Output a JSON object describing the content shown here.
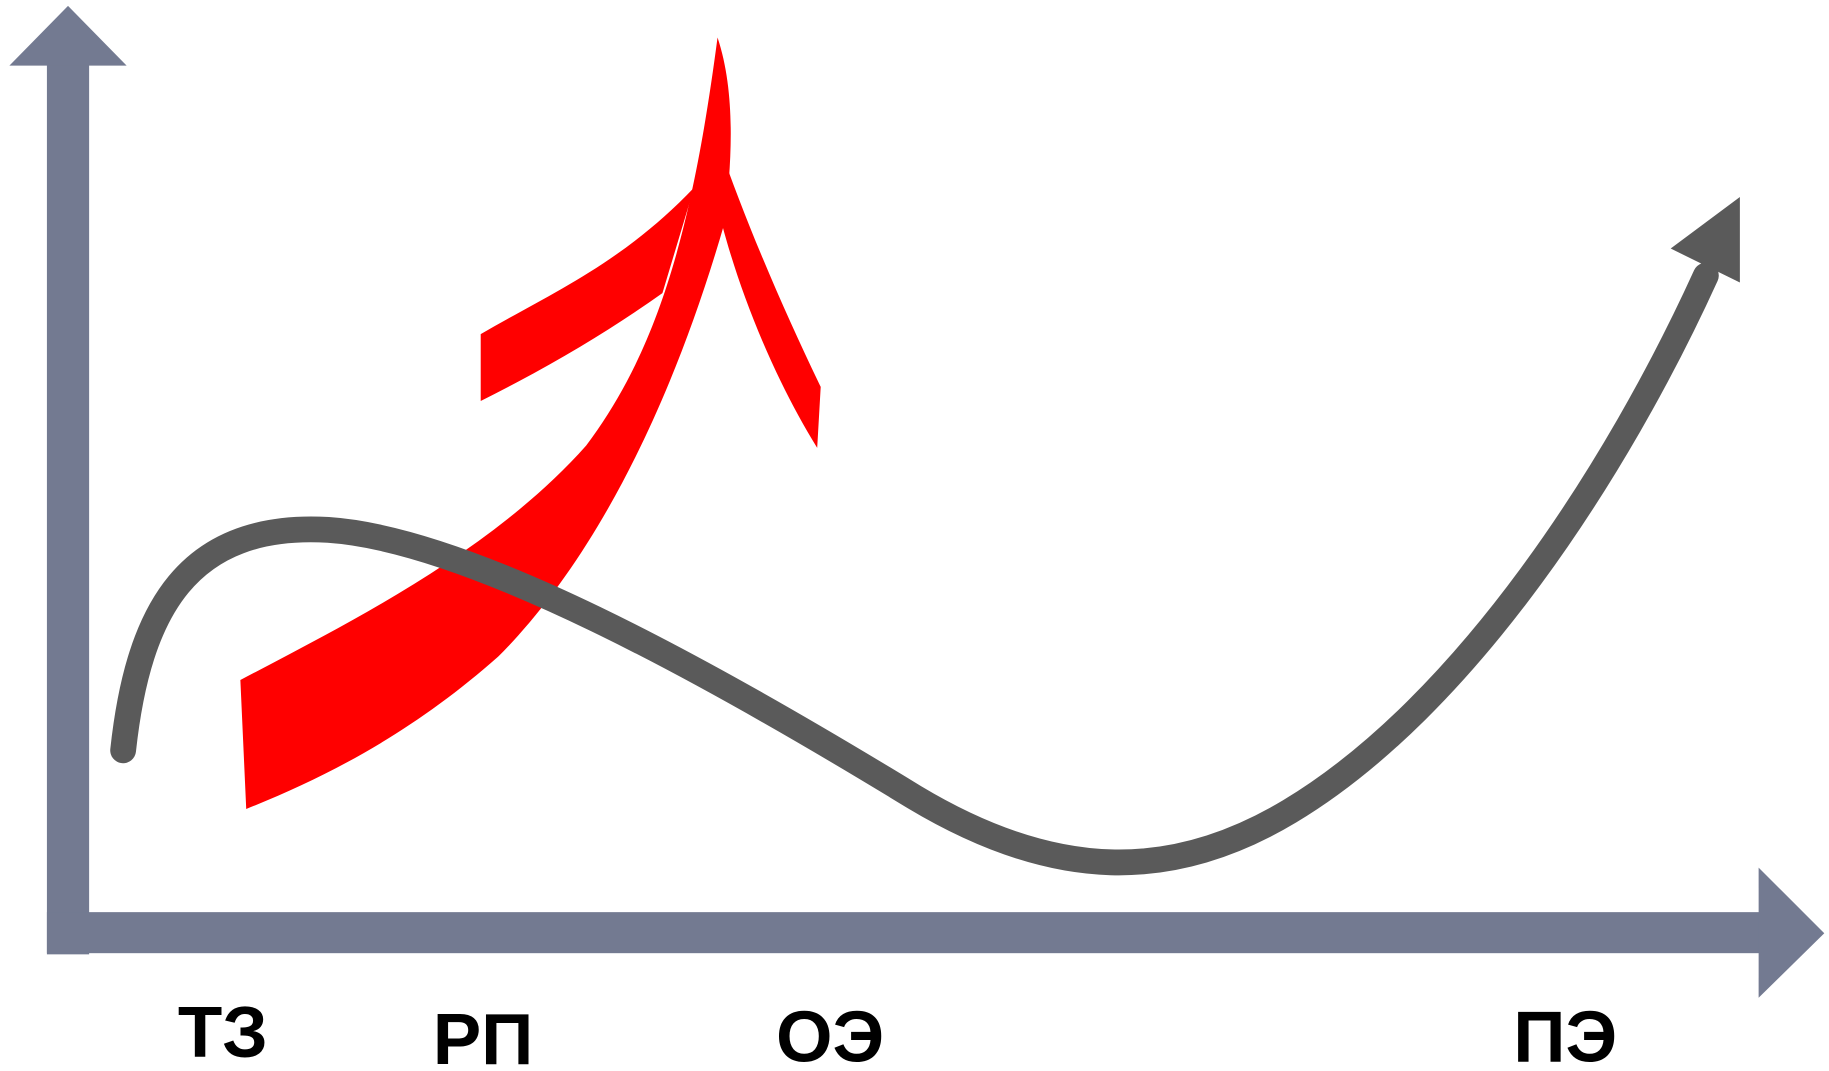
{
  "labels": [
    "ТЗ",
    "РП",
    "ОЭ",
    "ПЭ"
  ]
}
